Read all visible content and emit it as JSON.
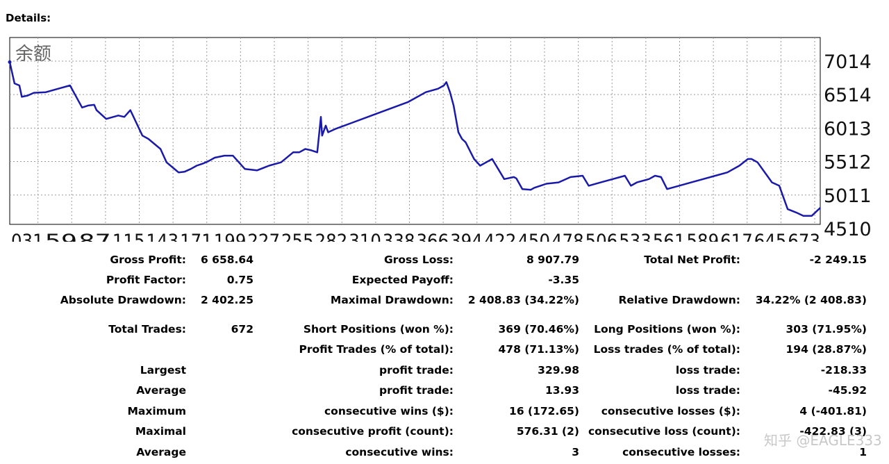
{
  "details_label": "Details:",
  "chart_data": {
    "type": "line",
    "legend_label": "余额",
    "y_ticks": [
      7014,
      6514,
      6013,
      5512,
      5011,
      4510
    ],
    "x_ticks": [
      "031",
      "59",
      "87",
      "115",
      "143",
      "171",
      "199",
      "227",
      "255",
      "282",
      "310",
      "338",
      "366",
      "394",
      "422",
      "450",
      "478",
      "506",
      "533",
      "561",
      "589",
      "617",
      "645",
      "673"
    ],
    "ylim": [
      4510,
      7014
    ],
    "xlim": [
      0,
      672
    ],
    "line_color": "#1a1aaa",
    "grid": true,
    "x": [
      0,
      4,
      8,
      10,
      15,
      20,
      30,
      40,
      50,
      60,
      65,
      70,
      72,
      80,
      90,
      95,
      100,
      110,
      115,
      125,
      130,
      140,
      145,
      150,
      155,
      160,
      165,
      170,
      178,
      185,
      195,
      205,
      215,
      225,
      235,
      240,
      245,
      250,
      255,
      258,
      259,
      262,
      264,
      270,
      285,
      300,
      315,
      330,
      345,
      355,
      360,
      362,
      365,
      368,
      372,
      375,
      378,
      385,
      390,
      395,
      400,
      405,
      410,
      418,
      420,
      425,
      432,
      435,
      440,
      445,
      455,
      465,
      475,
      480,
      490,
      500,
      510,
      515,
      520,
      530,
      535,
      540,
      545,
      555,
      565,
      575,
      585,
      595,
      605,
      612,
      615,
      620,
      628,
      632,
      638,
      645,
      652,
      658,
      665,
      672
    ],
    "y": [
      7000,
      6680,
      6650,
      6480,
      6500,
      6540,
      6550,
      6600,
      6650,
      6320,
      6350,
      6360,
      6280,
      6150,
      6200,
      6180,
      6280,
      5900,
      5850,
      5700,
      5500,
      5350,
      5360,
      5400,
      5450,
      5480,
      5520,
      5570,
      5600,
      5600,
      5400,
      5380,
      5450,
      5500,
      5650,
      5650,
      5700,
      5680,
      5650,
      6180,
      5900,
      6050,
      5950,
      6000,
      6100,
      6200,
      6300,
      6400,
      6550,
      6600,
      6650,
      6700,
      6550,
      6350,
      5950,
      5850,
      5800,
      5550,
      5450,
      5500,
      5550,
      5400,
      5250,
      5280,
      5260,
      5100,
      5090,
      5120,
      5150,
      5180,
      5200,
      5280,
      5300,
      5150,
      5200,
      5250,
      5300,
      5150,
      5200,
      5250,
      5300,
      5280,
      5100,
      5150,
      5200,
      5250,
      5300,
      5350,
      5450,
      5550,
      5550,
      5500,
      5300,
      5200,
      5150,
      4800,
      4750,
      4700,
      4700,
      4820
    ]
  },
  "stats": {
    "row1": [
      "Gross Profit:",
      "6 658.64",
      "Gross Loss:",
      "8 907.79",
      "Total Net Profit:",
      "-2 249.15"
    ],
    "row2": [
      "Profit Factor:",
      "0.75",
      "Expected Payoff:",
      "-3.35"
    ],
    "row3": [
      "Absolute Drawdown:",
      "2 402.25",
      "Maximal Drawdown:",
      "2 408.83 (34.22%)",
      "Relative Drawdown:",
      "34.22% (2 408.83)"
    ],
    "row4": [
      "Total Trades:",
      "672",
      "Short Positions (won %):",
      "369 (70.46%)",
      "Long Positions (won %):",
      "303 (71.95%)"
    ],
    "row5": [
      "Profit Trades (% of total):",
      "478 (71.13%)",
      "Loss trades (% of total):",
      "194 (28.87%)"
    ],
    "row6": [
      "Largest",
      "profit trade:",
      "329.98",
      "loss trade:",
      "-218.33"
    ],
    "row7": [
      "Average",
      "profit trade:",
      "13.93",
      "loss trade:",
      "-45.92"
    ],
    "row8": [
      "Maximum",
      "consecutive wins ($):",
      "16 (172.65)",
      "consecutive losses ($):",
      "4 (-401.81)"
    ],
    "row9": [
      "Maximal",
      "consecutive profit (count):",
      "576.31 (2)",
      "consecutive loss (count):",
      "-422.83 (3)"
    ],
    "row10": [
      "Average",
      "consecutive wins:",
      "3",
      "consecutive losses:",
      "1"
    ]
  },
  "watermark": "知乎 @EAGLE333"
}
